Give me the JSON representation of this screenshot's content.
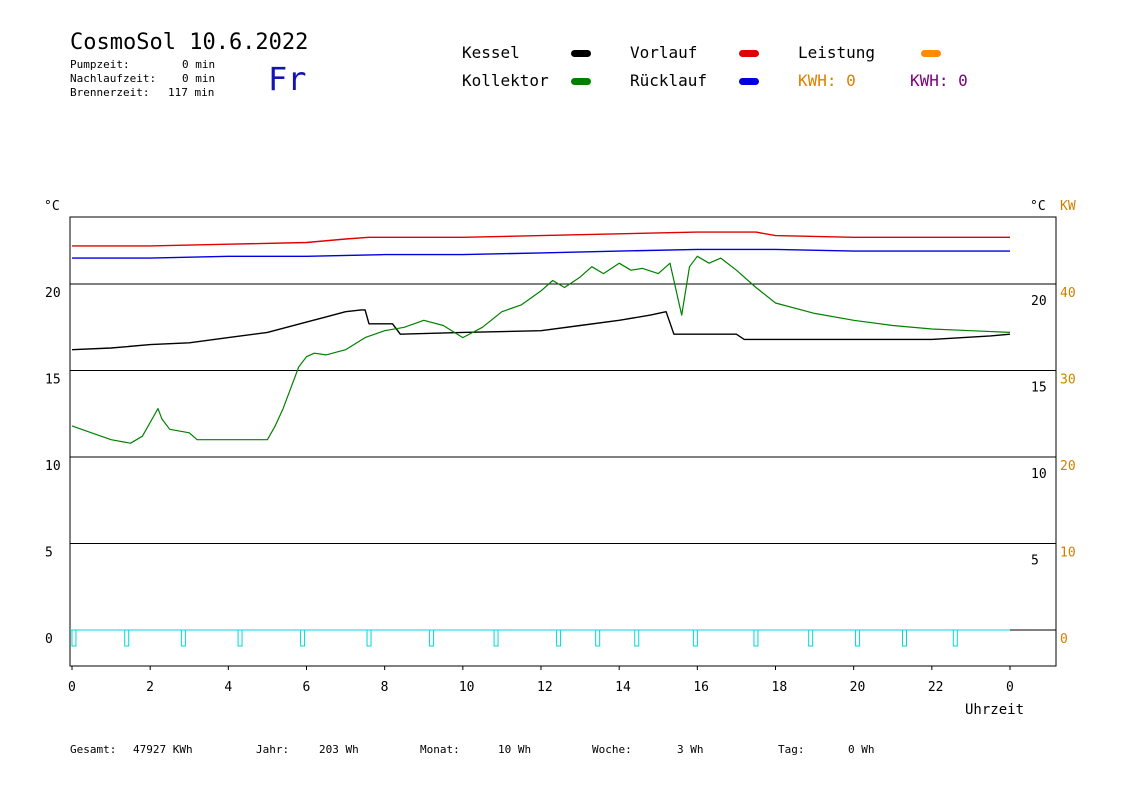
{
  "header": {
    "title": "CosmoSol 10.6.2022",
    "pump_label": "Pumpzeit:",
    "pump_value": "0 min",
    "after_label": "Nachlaufzeit:",
    "after_value": "0 min",
    "burner_label": "Brennerzeit:",
    "burner_value": "117 min",
    "weekday": "Fr"
  },
  "legend": {
    "kessel": "Kessel",
    "kollektor": "Kollektor",
    "vorlauf": "Vorlauf",
    "ruecklauf": "Rücklauf",
    "leistung": "Leistung",
    "kwh1": "KWH: 0",
    "kwh2": "KWH: 0"
  },
  "colors": {
    "kessel": "#000000",
    "kollektor": "#008000",
    "vorlauf": "#e00000",
    "ruecklauf": "#0000e0",
    "leistung": "#ff8c00",
    "kwh2": "#800080",
    "pump": "#00d8d8",
    "axis_right": "#d08000"
  },
  "footer": {
    "gesamt_label": "Gesamt:",
    "gesamt_value": "47927 KWh",
    "jahr_label": "Jahr:",
    "jahr_value": "203 Wh",
    "monat_label": "Monat:",
    "monat_value": "10 Wh",
    "woche_label": "Woche:",
    "woche_value": "3 Wh",
    "tag_label": "Tag:",
    "tag_value": "0 Wh"
  },
  "chart_data": {
    "type": "line",
    "xlabel": "Uhrzeit",
    "ylabel_left": "°C",
    "ylabel_right": "°C",
    "ylabel_right2": "KW",
    "xlim": [
      0,
      24
    ],
    "ylim": [
      -2,
      24
    ],
    "grid": true,
    "x_ticks": [
      "0",
      "2",
      "4",
      "6",
      "8",
      "10",
      "12",
      "14",
      "16",
      "18",
      "20",
      "22",
      "0"
    ],
    "y_ticks_left": [
      0,
      5,
      10,
      15,
      20
    ],
    "y_ticks_right": [
      5,
      10,
      15,
      20
    ],
    "y_ticks_kw": [
      0,
      10,
      20,
      30,
      40
    ],
    "series": [
      {
        "name": "Vorlauf",
        "key": "vorlauf",
        "x": [
          0,
          2,
          4,
          6,
          7,
          7.6,
          8,
          10,
          12,
          14,
          16,
          17.5,
          18,
          20,
          22,
          24
        ],
        "y": [
          22.2,
          22.2,
          22.3,
          22.4,
          22.6,
          22.7,
          22.7,
          22.7,
          22.8,
          22.9,
          23.0,
          23.0,
          22.8,
          22.7,
          22.7,
          22.7
        ]
      },
      {
        "name": "Rücklauf",
        "key": "ruecklauf",
        "x": [
          0,
          2,
          4,
          6,
          8,
          10,
          12,
          14,
          16,
          18,
          20,
          22,
          24
        ],
        "y": [
          21.5,
          21.5,
          21.6,
          21.6,
          21.7,
          21.7,
          21.8,
          21.9,
          22.0,
          22.0,
          21.9,
          21.9,
          21.9
        ]
      },
      {
        "name": "Kessel",
        "key": "kessel",
        "x": [
          0,
          1,
          2,
          3,
          4,
          5,
          6,
          6.5,
          7,
          7.4,
          7.5,
          7.6,
          8.2,
          8.4,
          10,
          12,
          13,
          14,
          14.8,
          15.2,
          15.4,
          15.6,
          17,
          17.2,
          18,
          20,
          22,
          23.5,
          24
        ],
        "y": [
          16.2,
          16.3,
          16.5,
          16.6,
          16.9,
          17.2,
          17.8,
          18.1,
          18.4,
          18.5,
          18.5,
          17.7,
          17.7,
          17.1,
          17.2,
          17.3,
          17.6,
          17.9,
          18.2,
          18.4,
          17.1,
          17.1,
          17.1,
          16.8,
          16.8,
          16.8,
          16.8,
          17.0,
          17.1
        ]
      },
      {
        "name": "Kollektor",
        "key": "kollektor",
        "x": [
          0,
          0.5,
          1,
          1.5,
          1.8,
          2.1,
          2.2,
          2.3,
          2.5,
          3,
          3.2,
          4,
          4.5,
          5,
          5.2,
          5.4,
          5.6,
          5.8,
          6,
          6.2,
          6.5,
          7,
          7.5,
          8,
          8.5,
          9,
          9.5,
          10,
          10.5,
          11,
          11.5,
          12,
          12.3,
          12.6,
          13,
          13.3,
          13.6,
          14,
          14.3,
          14.6,
          15,
          15.3,
          15.6,
          15.8,
          16,
          16.3,
          16.6,
          17,
          17.5,
          18,
          19,
          20,
          21,
          22,
          23,
          24
        ],
        "y": [
          11.8,
          11.4,
          11.0,
          10.8,
          11.2,
          12.4,
          12.8,
          12.2,
          11.6,
          11.4,
          11.0,
          11.0,
          11.0,
          11.0,
          11.8,
          12.8,
          14.0,
          15.2,
          15.8,
          16.0,
          15.9,
          16.2,
          16.9,
          17.3,
          17.5,
          17.9,
          17.6,
          16.9,
          17.5,
          18.4,
          18.8,
          19.6,
          20.2,
          19.8,
          20.4,
          21.0,
          20.6,
          21.2,
          20.8,
          20.9,
          20.6,
          21.2,
          18.2,
          21.0,
          21.6,
          21.2,
          21.5,
          20.8,
          19.8,
          18.9,
          18.3,
          17.9,
          17.6,
          17.4,
          17.3,
          17.2
        ]
      }
    ],
    "pump_pulses_x": [
      0.05,
      1.4,
      2.85,
      4.3,
      5.9,
      7.6,
      9.2,
      10.85,
      12.45,
      13.45,
      14.45,
      15.95,
      17.5,
      18.9,
      20.1,
      21.3,
      22.6
    ]
  }
}
